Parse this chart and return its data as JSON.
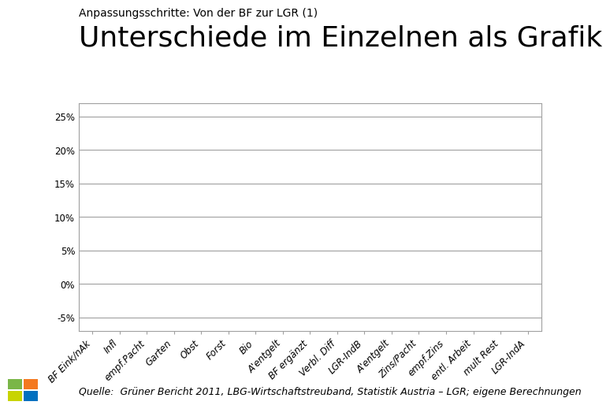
{
  "subtitle": "Anpassungsschritte: Von der BF zur LGR (1)",
  "title": "Unterschiede im Einzelnen als Grafik",
  "source": "Quelle:  Grüner Bericht 2011, LBG-Wirtschaftstreuband, Statistik Austria – LGR; eigene Berechnungen",
  "categories": [
    "BF Eink/nAk",
    "Infl",
    "empf.Pacht",
    "Garten",
    "Obst",
    "Forst",
    "Bio",
    "A'entgelt",
    "BF ergänzt",
    "Verbl. Diff",
    "LGR-IndB",
    "A'entgelt",
    "Zins/Pacht",
    "empf.Zins",
    "entl. Arbeit",
    "mult Rest",
    "LGR-IndA"
  ],
  "values": [
    0.0,
    0.0,
    0.0,
    0.0,
    0.0,
    0.0,
    0.0,
    0.0,
    0.0,
    0.0,
    0.0,
    0.0,
    0.0,
    0.0,
    0.0,
    0.0,
    0.0
  ],
  "ylim": [
    -0.07,
    0.27
  ],
  "yticks": [
    -0.05,
    0.0,
    0.05,
    0.1,
    0.15,
    0.2,
    0.25
  ],
  "yticklabels": [
    "-5%",
    "0%",
    "5%",
    "10%",
    "15%",
    "20%",
    "25%"
  ],
  "grid_color": "#a0a0a0",
  "box_color": "#a0a0a0",
  "bg_color": "#ffffff",
  "plot_bg_color": "#ffffff",
  "subtitle_fontsize": 10,
  "title_fontsize": 26,
  "tick_fontsize": 8.5,
  "source_fontsize": 9
}
